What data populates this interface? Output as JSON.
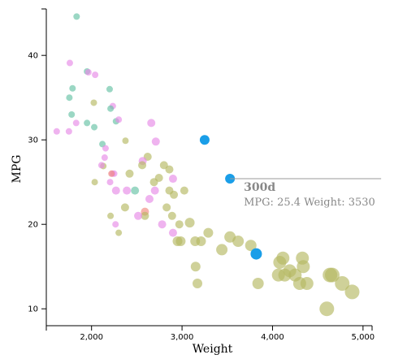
{
  "chart_data": {
    "type": "scatter",
    "xlabel": "Weight",
    "ylabel": "MPG",
    "xlim": [
      1500,
      5100
    ],
    "ylim": [
      8,
      45.5
    ],
    "x_ticks": [
      2000,
      3000,
      4000,
      5000
    ],
    "x_tick_labels": [
      "2,000",
      "3,000",
      "4,000",
      "5,000"
    ],
    "y_ticks": [
      10,
      20,
      30,
      40
    ],
    "y_tick_labels": [
      "10",
      "20",
      "30",
      "40"
    ],
    "grid": false,
    "points": [
      {
        "x": 1835,
        "y": 44.6,
        "c": "teal",
        "r": 4
      },
      {
        "x": 1760,
        "y": 39.1,
        "c": "pink",
        "r": 4
      },
      {
        "x": 1950,
        "y": 38.1,
        "c": "teal",
        "r": 4
      },
      {
        "x": 1965,
        "y": 38.0,
        "c": "pink",
        "r": 4
      },
      {
        "x": 2040,
        "y": 37.7,
        "c": "pink",
        "r": 4
      },
      {
        "x": 1790,
        "y": 36.1,
        "c": "teal",
        "r": 4
      },
      {
        "x": 2200,
        "y": 36.0,
        "c": "teal",
        "r": 4
      },
      {
        "x": 1755,
        "y": 35.0,
        "c": "teal",
        "r": 4
      },
      {
        "x": 2025,
        "y": 34.4,
        "c": "olive",
        "r": 4
      },
      {
        "x": 2235,
        "y": 34.0,
        "c": "pink",
        "r": 4
      },
      {
        "x": 2210,
        "y": 33.7,
        "c": "teal",
        "r": 4
      },
      {
        "x": 1780,
        "y": 33.0,
        "c": "teal",
        "r": 4
      },
      {
        "x": 2270,
        "y": 32.2,
        "c": "teal",
        "r": 4
      },
      {
        "x": 2300,
        "y": 32.4,
        "c": "pink",
        "r": 4
      },
      {
        "x": 1830,
        "y": 32.0,
        "c": "pink",
        "r": 4
      },
      {
        "x": 1950,
        "y": 32.0,
        "c": "teal",
        "r": 4
      },
      {
        "x": 2660,
        "y": 32.0,
        "c": "pink",
        "r": 5
      },
      {
        "x": 2030,
        "y": 31.5,
        "c": "teal",
        "r": 4
      },
      {
        "x": 1615,
        "y": 31.0,
        "c": "pink",
        "r": 4
      },
      {
        "x": 1750,
        "y": 31.0,
        "c": "pink",
        "r": 4
      },
      {
        "x": 2375,
        "y": 29.9,
        "c": "olive",
        "r": 4
      },
      {
        "x": 2710,
        "y": 29.8,
        "c": "pink",
        "r": 5
      },
      {
        "x": 2120,
        "y": 29.5,
        "c": "teal",
        "r": 4
      },
      {
        "x": 2155,
        "y": 29.0,
        "c": "pink",
        "r": 4
      },
      {
        "x": 2620,
        "y": 28.0,
        "c": "olive",
        "r": 5
      },
      {
        "x": 2145,
        "y": 27.9,
        "c": "pink",
        "r": 4
      },
      {
        "x": 2565,
        "y": 27.5,
        "c": "pink",
        "r": 5
      },
      {
        "x": 2560,
        "y": 27.0,
        "c": "olive",
        "r": 5
      },
      {
        "x": 2130,
        "y": 26.9,
        "c": "olive",
        "r": 4
      },
      {
        "x": 2800,
        "y": 27.0,
        "c": "olive",
        "r": 5
      },
      {
        "x": 2110,
        "y": 27.0,
        "c": "pink",
        "r": 4
      },
      {
        "x": 2860,
        "y": 26.5,
        "c": "olive",
        "r": 5
      },
      {
        "x": 2420,
        "y": 26.0,
        "c": "olive",
        "r": 5
      },
      {
        "x": 2230,
        "y": 26.0,
        "c": "pink",
        "r": 4
      },
      {
        "x": 2250,
        "y": 26.0,
        "c": "pink",
        "r": 4
      },
      {
        "x": 2220,
        "y": 26.0,
        "c": "salmon",
        "r": 4
      },
      {
        "x": 2745,
        "y": 25.5,
        "c": "olive",
        "r": 5
      },
      {
        "x": 2900,
        "y": 25.4,
        "c": "pink",
        "r": 5
      },
      {
        "x": 2690,
        "y": 25.0,
        "c": "olive",
        "r": 5
      },
      {
        "x": 2205,
        "y": 25.0,
        "c": "pink",
        "r": 4
      },
      {
        "x": 2035,
        "y": 25.0,
        "c": "olive",
        "r": 4
      },
      {
        "x": 2270,
        "y": 24.0,
        "c": "pink",
        "r": 5
      },
      {
        "x": 2390,
        "y": 24.0,
        "c": "pink",
        "r": 5
      },
      {
        "x": 2480,
        "y": 24.0,
        "c": "teal",
        "r": 5
      },
      {
        "x": 2700,
        "y": 24.0,
        "c": "pink",
        "r": 5
      },
      {
        "x": 2860,
        "y": 24.0,
        "c": "olive",
        "r": 5
      },
      {
        "x": 3025,
        "y": 24.0,
        "c": "olive",
        "r": 5
      },
      {
        "x": 2910,
        "y": 23.5,
        "c": "olive",
        "r": 5
      },
      {
        "x": 2640,
        "y": 23.0,
        "c": "pink",
        "r": 5
      },
      {
        "x": 2370,
        "y": 22.0,
        "c": "olive",
        "r": 5
      },
      {
        "x": 2830,
        "y": 22.0,
        "c": "olive",
        "r": 5
      },
      {
        "x": 2590,
        "y": 21.5,
        "c": "salmon",
        "r": 5
      },
      {
        "x": 2590,
        "y": 21.0,
        "c": "olive",
        "r": 5
      },
      {
        "x": 2515,
        "y": 21.0,
        "c": "pink",
        "r": 5
      },
      {
        "x": 2890,
        "y": 21.0,
        "c": "olive",
        "r": 5
      },
      {
        "x": 2210,
        "y": 21.0,
        "c": "olive",
        "r": 4
      },
      {
        "x": 2780,
        "y": 20.0,
        "c": "pink",
        "r": 5
      },
      {
        "x": 2265,
        "y": 20.0,
        "c": "pink",
        "r": 4
      },
      {
        "x": 2970,
        "y": 20.0,
        "c": "olive",
        "r": 5
      },
      {
        "x": 3085,
        "y": 20.2,
        "c": "olive",
        "r": 6
      },
      {
        "x": 2900,
        "y": 19.0,
        "c": "pink",
        "r": 5
      },
      {
        "x": 2300,
        "y": 19.0,
        "c": "olive",
        "r": 4
      },
      {
        "x": 3290,
        "y": 19.0,
        "c": "olive",
        "r": 6
      },
      {
        "x": 2950,
        "y": 18.0,
        "c": "olive",
        "r": 6
      },
      {
        "x": 2985,
        "y": 18.0,
        "c": "olive",
        "r": 6
      },
      {
        "x": 3145,
        "y": 18.0,
        "c": "olive",
        "r": 6
      },
      {
        "x": 3210,
        "y": 18.0,
        "c": "olive",
        "r": 6
      },
      {
        "x": 3530,
        "y": 18.5,
        "c": "olive",
        "r": 7
      },
      {
        "x": 3620,
        "y": 18.0,
        "c": "olive",
        "r": 7
      },
      {
        "x": 3760,
        "y": 17.5,
        "c": "olive",
        "r": 7
      },
      {
        "x": 3440,
        "y": 17.0,
        "c": "olive",
        "r": 7
      },
      {
        "x": 3250,
        "y": 30.0,
        "c": "blue",
        "r": 6
      },
      {
        "x": 3530,
        "y": 25.4,
        "c": "blue",
        "r": 6
      },
      {
        "x": 3820,
        "y": 16.5,
        "c": "blue",
        "r": 7
      },
      {
        "x": 4080,
        "y": 15.5,
        "c": "olive",
        "r": 8
      },
      {
        "x": 4115,
        "y": 16.0,
        "c": "olive",
        "r": 8
      },
      {
        "x": 4330,
        "y": 16.0,
        "c": "olive",
        "r": 8
      },
      {
        "x": 4340,
        "y": 15.0,
        "c": "olive",
        "r": 8
      },
      {
        "x": 4190,
        "y": 14.5,
        "c": "olive",
        "r": 8
      },
      {
        "x": 4065,
        "y": 14.0,
        "c": "olive",
        "r": 8
      },
      {
        "x": 4135,
        "y": 14.0,
        "c": "olive",
        "r": 8
      },
      {
        "x": 4250,
        "y": 14.0,
        "c": "olive",
        "r": 8
      },
      {
        "x": 4635,
        "y": 14.0,
        "c": "olive",
        "r": 9
      },
      {
        "x": 4660,
        "y": 14.0,
        "c": "olive",
        "r": 9
      },
      {
        "x": 4300,
        "y": 13.0,
        "c": "olive",
        "r": 8
      },
      {
        "x": 4380,
        "y": 13.0,
        "c": "olive",
        "r": 8
      },
      {
        "x": 3840,
        "y": 13.0,
        "c": "olive",
        "r": 7
      },
      {
        "x": 4770,
        "y": 13.0,
        "c": "olive",
        "r": 9
      },
      {
        "x": 4880,
        "y": 12.0,
        "c": "olive",
        "r": 9
      },
      {
        "x": 3150,
        "y": 15.0,
        "c": "olive",
        "r": 6
      },
      {
        "x": 3170,
        "y": 13.0,
        "c": "olive",
        "r": 6
      },
      {
        "x": 4600,
        "y": 10.0,
        "c": "olive",
        "r": 9
      }
    ],
    "highlight": {
      "point_index": 72,
      "name": "300d",
      "detail": "MPG: 25.4 Weight: 3530",
      "line_to_x": 5200
    },
    "colors": {
      "teal": "#66c2a5",
      "pink": "#e78ae7",
      "olive": "#b5b863",
      "salmon": "#f08a7e",
      "blue": "#1a9ee8"
    }
  }
}
